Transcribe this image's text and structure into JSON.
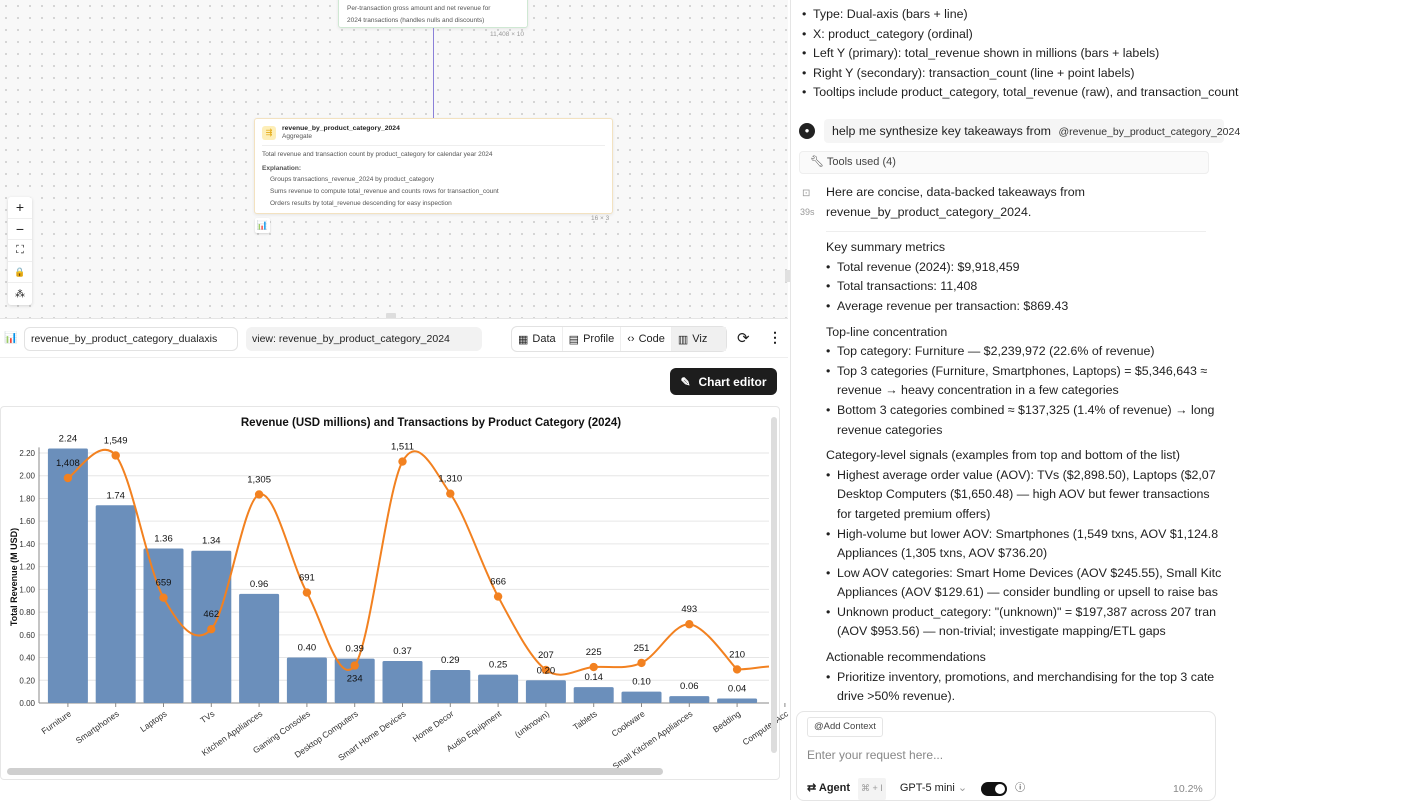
{
  "canvas": {
    "top_node": {
      "desc_line1": "Per-transaction gross amount and net revenue for",
      "desc_line2": "2024 transactions (handles nulls and discounts)",
      "shape": "11,408 × 10"
    },
    "agg_node": {
      "title": "revenue_by_product_category_2024",
      "type": "Aggregate",
      "description": "Total revenue and transaction count by product_category for calendar year 2024",
      "explanation_label": "Explanation:",
      "bullets": [
        "Groups transactions_revenue_2024 by product_category",
        "Sums revenue to compute total_revenue and counts rows for transaction_count",
        "Orders results by total_revenue descending for easy inspection"
      ],
      "shape": "16 × 3"
    },
    "zoom_controls": [
      "+",
      "−",
      "⛶",
      "🔒",
      "⁂"
    ]
  },
  "toolbar": {
    "name": "revenue_by_product_category_dualaxis",
    "view": "view: revenue_by_product_category_2024",
    "tabs": [
      {
        "label": "Data"
      },
      {
        "label": "Profile"
      },
      {
        "label": "Code"
      },
      {
        "label": "Viz"
      }
    ],
    "active_tab": "Viz",
    "chart_editor": "Chart editor"
  },
  "chart_data": {
    "type": "bar+line",
    "title": "Revenue (USD millions) and Transactions by Product Category (2024)",
    "ylabel": "Total Revenue (M USD)",
    "ylim": [
      0,
      2.25
    ],
    "yticks": [
      "0.00",
      "0.20",
      "0.40",
      "0.60",
      "0.80",
      "1.00",
      "1.20",
      "1.40",
      "1.60",
      "1.80",
      "2.00",
      "2.20"
    ],
    "y2lim": [
      0,
      1600
    ],
    "categories": [
      "Furniture",
      "Smartphones",
      "Laptops",
      "TVs",
      "Kitchen Appliances",
      "Gaming Consoles",
      "Desktop Computers",
      "Smart Home Devices",
      "Home Decor",
      "Audio Equipment",
      "(unknown)",
      "Tablets",
      "Cookware",
      "Small Kitchen Appliances",
      "Bedding",
      "Computer Acc"
    ],
    "series": [
      {
        "name": "total_revenue (M USD)",
        "kind": "bar",
        "color": "#6b8fbb",
        "values": [
          2.24,
          1.74,
          1.36,
          1.34,
          0.96,
          0.4,
          0.39,
          0.37,
          0.29,
          0.25,
          0.2,
          0.14,
          0.1,
          0.06,
          0.04,
          null
        ],
        "labels": [
          "2.24",
          "1.74",
          "1.36",
          "1.34",
          "0.96",
          "0.40",
          "0.39",
          "0.37",
          "0.29",
          "0.25",
          "0.20",
          "0.14",
          "0.10",
          "0.06",
          "0.04",
          null
        ]
      },
      {
        "name": "transaction_count",
        "kind": "line",
        "color": "#f28120",
        "values": [
          1408,
          1549,
          659,
          462,
          1305,
          691,
          234,
          1511,
          1310,
          666,
          207,
          225,
          251,
          493,
          210,
          null
        ],
        "labels": [
          "1,408",
          "1,549",
          "659",
          "462",
          "1,305",
          "691",
          "234",
          "1,511",
          "1,310",
          "666",
          "207",
          "225",
          "251",
          "493",
          "210",
          null
        ]
      }
    ]
  },
  "assistant": {
    "spec_bullets": [
      "Type: Dual-axis (bars + line)",
      "X: product_category (ordinal)",
      "Left Y (primary): total_revenue shown in millions (bars + labels)",
      "Right Y (secondary): transaction_count (line + point labels)",
      "Tooltips include product_category, total_revenue (raw), and transaction_count"
    ],
    "user_message": "help me synthesize key takeaways from",
    "user_mention": "@revenue_by_product_category_2024",
    "tools_used": "Tools used (4)",
    "elapsed": "39s",
    "intro_line1": "Here are concise, data-backed takeaways from",
    "intro_line2": "revenue_by_product_category_2024.",
    "sections": [
      {
        "heading": "Key summary metrics",
        "bullets": [
          [
            "Total revenue (2024): $9,918,459"
          ],
          [
            "Total transactions: 11,408"
          ],
          [
            "Average revenue per transaction: $869.43"
          ]
        ]
      },
      {
        "heading": "Top-line concentration",
        "bullets": [
          [
            "Top category: Furniture — $2,239,972 (22.6% of revenue)"
          ],
          [
            "Top 3 categories (Furniture, Smartphones, Laptops) = $5,346,643 ≈",
            "revenue → heavy concentration in a few categories"
          ],
          [
            "Bottom 3 categories combined ≈ $137,325 (1.4% of revenue) → long",
            "revenue categories"
          ]
        ]
      },
      {
        "heading": "Category-level signals (examples from top and bottom of the list)",
        "bullets": [
          [
            "Highest average order value (AOV): TVs ($2,898.50), Laptops ($2,07",
            "Desktop Computers ($1,650.48) — high AOV but fewer transactions",
            "for targeted premium offers)"
          ],
          [
            "High-volume but lower AOV: Smartphones (1,549 txns, AOV $1,124.8",
            "Appliances (1,305 txns, AOV $736.20)"
          ],
          [
            "Low AOV categories: Smart Home Devices (AOV $245.55), Small Kitc",
            "Appliances (AOV $129.61) — consider bundling or upsell to raise bas"
          ],
          [
            "Unknown product_category: \"(unknown)\" = $197,387 across 207 tran",
            "(AOV $953.56) — non-trivial; investigate mapping/ETL gaps"
          ]
        ]
      },
      {
        "heading": "Actionable recommendations",
        "bullets": [
          [
            "Prioritize inventory, promotions, and merchandising for the top 3 cate",
            "drive >50% revenue)."
          ]
        ]
      }
    ],
    "input": {
      "add_context": "@Add Context",
      "placeholder": "Enter your request here...",
      "mode": "Agent",
      "shortcut": "⌘ + I",
      "model": "GPT-5 mini",
      "context_usage": "10.2%"
    }
  }
}
